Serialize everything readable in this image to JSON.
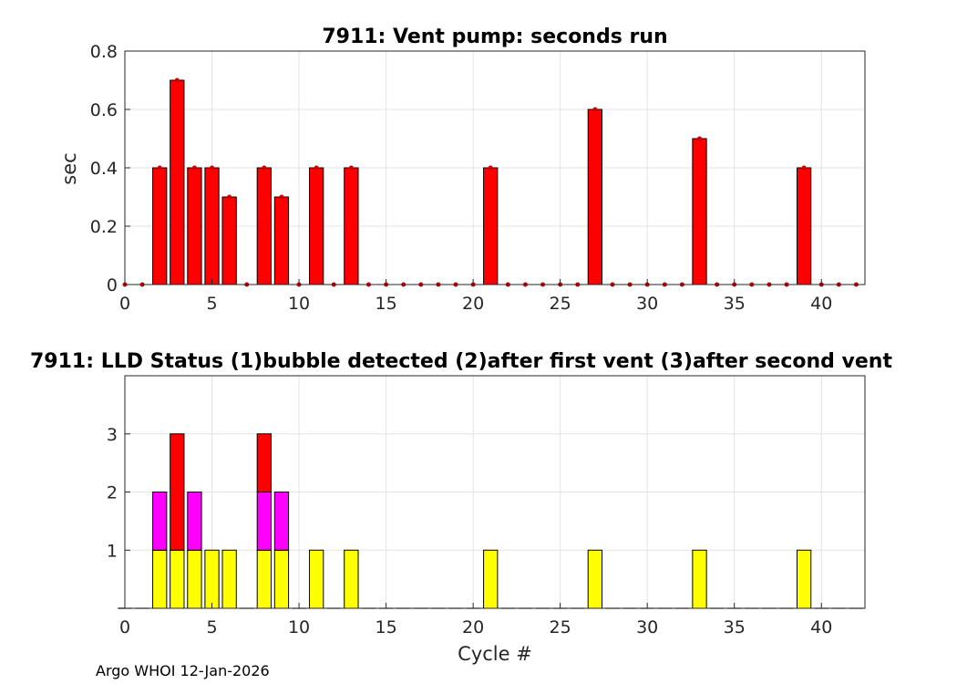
{
  "footer": "Argo WHOI 12-Jan-2026",
  "chart_data": [
    {
      "type": "bar",
      "title": "7911: Vent pump: seconds run",
      "xlabel": "",
      "ylabel": "sec",
      "xlim": [
        0,
        42.5
      ],
      "ylim": [
        0,
        0.8
      ],
      "xticks": [
        0,
        5,
        10,
        15,
        20,
        25,
        30,
        35,
        40
      ],
      "yticks": [
        0,
        0.2,
        0.4,
        0.6,
        0.8
      ],
      "ytick_labels": [
        "0",
        "0.2",
        "0.4",
        "0.6",
        "0.8"
      ],
      "grid": true,
      "bar_color": "#ff0000",
      "marker_color": "#cc0000",
      "x": [
        0,
        1,
        2,
        3,
        4,
        5,
        6,
        7,
        8,
        9,
        10,
        11,
        12,
        13,
        14,
        15,
        16,
        17,
        18,
        19,
        20,
        21,
        22,
        23,
        24,
        25,
        26,
        27,
        28,
        29,
        30,
        31,
        32,
        33,
        34,
        35,
        36,
        37,
        38,
        39,
        40,
        41,
        42
      ],
      "values": [
        0,
        0,
        0.4,
        0.7,
        0.4,
        0.4,
        0.3,
        0,
        0.4,
        0.3,
        0,
        0.4,
        0,
        0.4,
        0,
        0,
        0,
        0,
        0,
        0,
        0,
        0.4,
        0,
        0,
        0,
        0,
        0,
        0.6,
        0,
        0,
        0,
        0,
        0,
        0.5,
        0,
        0,
        0,
        0,
        0,
        0.4,
        0,
        0,
        0
      ]
    },
    {
      "type": "bar",
      "title": "7911: LLD Status   (1)bubble detected   (2)after first vent  (3)after second vent",
      "xlabel": "Cycle #",
      "ylabel": "",
      "xlim": [
        0,
        42.5
      ],
      "ylim": [
        0,
        4
      ],
      "xticks": [
        0,
        5,
        10,
        15,
        20,
        25,
        30,
        35,
        40
      ],
      "yticks": [
        1,
        2,
        3
      ],
      "ytick_labels": [
        "1",
        "2",
        "3"
      ],
      "grid": true,
      "stacked": true,
      "x": [
        0,
        1,
        2,
        3,
        4,
        5,
        6,
        7,
        8,
        9,
        10,
        11,
        12,
        13,
        14,
        15,
        16,
        17,
        18,
        19,
        20,
        21,
        22,
        23,
        24,
        25,
        26,
        27,
        28,
        29,
        30,
        31,
        32,
        33,
        34,
        35,
        36,
        37,
        38,
        39,
        40,
        41,
        42
      ],
      "series": [
        {
          "name": "(1)bubble detected",
          "color": "#ffff00",
          "values": [
            0,
            0,
            1,
            1,
            1,
            1,
            1,
            0,
            1,
            1,
            0,
            1,
            0,
            1,
            0,
            0,
            0,
            0,
            0,
            0,
            0,
            1,
            0,
            0,
            0,
            0,
            0,
            1,
            0,
            0,
            0,
            0,
            0,
            1,
            0,
            0,
            0,
            0,
            0,
            1,
            0,
            0,
            0
          ]
        },
        {
          "name": "(2)after first vent",
          "color": "#ff00ff",
          "values": [
            0,
            0,
            1,
            0,
            1,
            0,
            0,
            0,
            1,
            1,
            0,
            0,
            0,
            0,
            0,
            0,
            0,
            0,
            0,
            0,
            0,
            0,
            0,
            0,
            0,
            0,
            0,
            0,
            0,
            0,
            0,
            0,
            0,
            0,
            0,
            0,
            0,
            0,
            0,
            0,
            0,
            0,
            0
          ]
        },
        {
          "name": "(3)after second vent",
          "color": "#ff0000",
          "values": [
            0,
            0,
            0,
            2,
            0,
            0,
            0,
            0,
            1,
            0,
            0,
            0,
            0,
            0,
            0,
            0,
            0,
            0,
            0,
            0,
            0,
            0,
            0,
            0,
            0,
            0,
            0,
            0,
            0,
            0,
            0,
            0,
            0,
            0,
            0,
            0,
            0,
            0,
            0,
            0,
            0,
            0,
            0
          ]
        }
      ]
    }
  ]
}
